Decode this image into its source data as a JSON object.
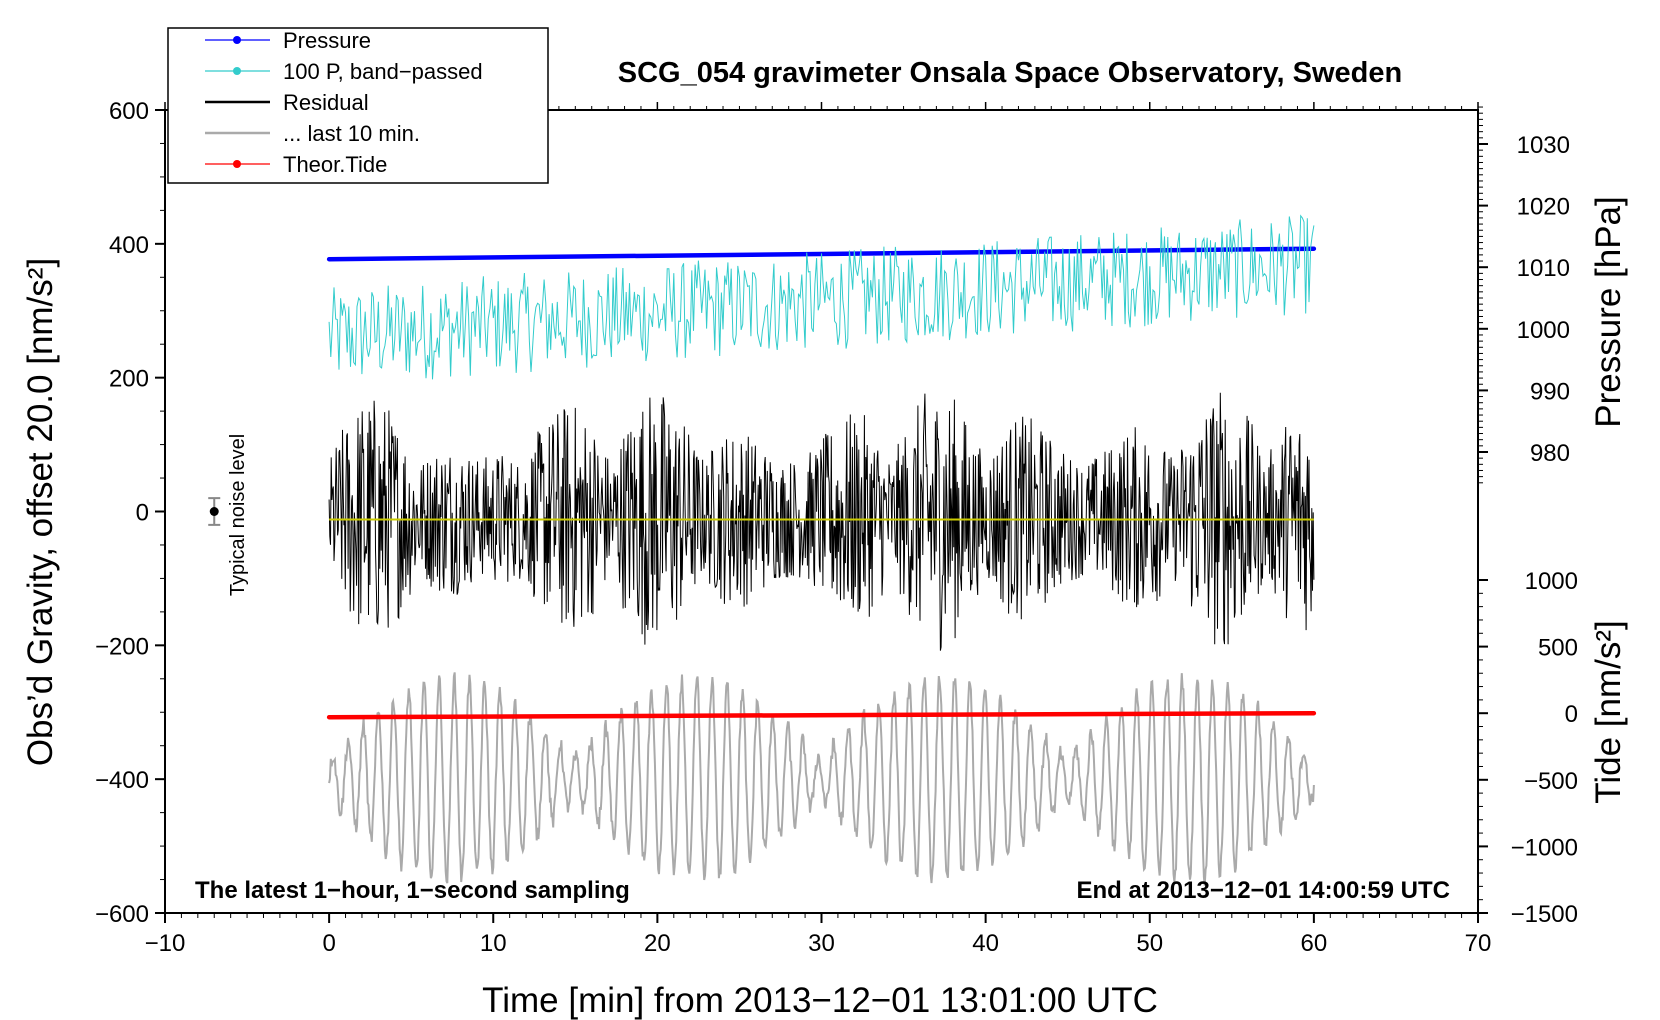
{
  "chart_data": {
    "type": "line",
    "title": "SCG_054 gravimeter Onsala Space Observatory, Sweden",
    "xlabel": "Time [min] from 2013−12−01 13:01:00 UTC",
    "ylabel": "Obs’d Gravity, offset 20.0 [nm/s²]",
    "ylabel_pressure": "Pressure [hPa]",
    "ylabel_tide": "Tide [nm/s²]",
    "xlim": [
      -10,
      70
    ],
    "ylim": [
      -600,
      600
    ],
    "pressure_lim": [
      975,
      1036
    ],
    "tide_lim": [
      -1500,
      1000
    ],
    "x_ticks": [
      -10,
      0,
      10,
      20,
      30,
      40,
      50,
      60,
      70
    ],
    "x_tick_labels": [
      "−10",
      "0",
      "10",
      "20",
      "30",
      "40",
      "50",
      "60",
      "70"
    ],
    "y_ticks": [
      -600,
      -400,
      -200,
      0,
      200,
      400,
      600
    ],
    "y_tick_labels": [
      "−600",
      "−400",
      "−200",
      "0",
      "200",
      "400",
      "600"
    ],
    "pressure_ticks": [
      980,
      990,
      1000,
      1010,
      1020,
      1030
    ],
    "pressure_tick_labels": [
      "980",
      "990",
      "1000",
      "1010",
      "1020",
      "1030"
    ],
    "tide_ticks": [
      -1500,
      -1000,
      -500,
      0,
      500,
      1000
    ],
    "tide_tick_labels": [
      "−1500",
      "−1000",
      "−500",
      "0",
      "500",
      "1000"
    ],
    "legend": {
      "position": "top-left",
      "entries": [
        {
          "label": "Pressure",
          "color": "#0000ff",
          "marker": true
        },
        {
          "label": "100 P, band−passed",
          "color": "#33cccc",
          "marker": true
        },
        {
          "label": "Residual",
          "color": "#000000",
          "marker": false
        },
        {
          "label": "... last 10 min.",
          "color": "#aaaaaa",
          "marker": false
        },
        {
          "label": "Theor.Tide",
          "color": "#ff0000",
          "marker": true
        }
      ]
    },
    "annotations": {
      "bottom_left": "The latest 1−hour, 1−second sampling",
      "bottom_right": "End at 2013−12−01 14:00:59 UTC",
      "noise_label": "Typical noise level"
    },
    "noise_marker": {
      "x": -7,
      "y": 0,
      "err": 20
    },
    "series": [
      {
        "name": "Pressure",
        "axis": "pressure",
        "color": "#0000ff",
        "x": [
          0,
          60
        ],
        "y": [
          1011.3,
          1013.0
        ]
      },
      {
        "name": "100 P, band−passed",
        "axis": "gravity",
        "color": "#33cccc",
        "x": [
          0,
          60
        ],
        "y_mean": [
          260,
          370
        ],
        "y_amp": 75
      },
      {
        "name": "Residual",
        "axis": "gravity",
        "color": "#000000",
        "x": [
          0,
          60
        ],
        "y_mean": [
          -10,
          -10
        ],
        "y_amp": 200
      },
      {
        "name": "Residual mean",
        "axis": "gravity",
        "color": "#cccc00",
        "x": [
          0,
          60
        ],
        "y": [
          -12,
          -12
        ]
      },
      {
        "name": "... last 10 min.",
        "axis": "gravity",
        "color": "#aaaaaa",
        "x": [
          0,
          60
        ],
        "y_mean": [
          -400,
          -400
        ],
        "y_amp": 150
      },
      {
        "name": "Theor.Tide",
        "axis": "tide",
        "color": "#ff0000",
        "x": [
          0,
          60
        ],
        "y": [
          -30,
          0
        ]
      }
    ]
  }
}
